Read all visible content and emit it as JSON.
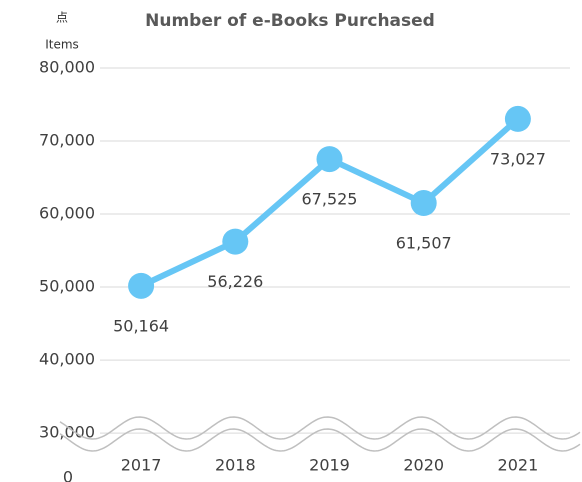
{
  "chart_data": {
    "type": "line",
    "title": "Number of e-Books Purchased",
    "y_unit_label": "点",
    "y_axis_label": "Items",
    "categories": [
      "2017",
      "2018",
      "2019",
      "2020",
      "2021"
    ],
    "values": [
      50164,
      56226,
      67525,
      61507,
      73027
    ],
    "value_labels": [
      "50,164",
      "56,226",
      "67,525",
      "61,507",
      "73,027"
    ],
    "color": "#66c6f5",
    "ylim": [
      27000,
      80000
    ],
    "yticks": [
      {
        "value": 0,
        "label": "0"
      },
      {
        "value": 30000,
        "label": "30,000"
      },
      {
        "value": 40000,
        "label": "40,000"
      },
      {
        "value": 50000,
        "label": "50,000"
      },
      {
        "value": 60000,
        "label": "60,000"
      },
      {
        "value": 70000,
        "label": "70,000"
      },
      {
        "value": 80000,
        "label": "80,000"
      }
    ],
    "grid": true,
    "axis_break": true
  }
}
